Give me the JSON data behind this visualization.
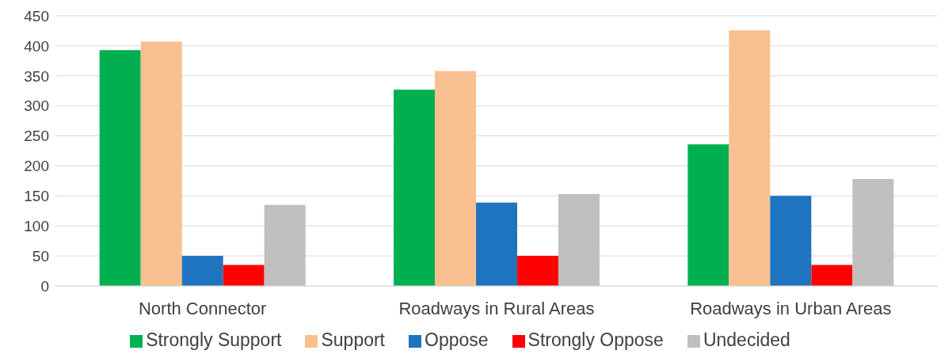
{
  "chart_data": {
    "type": "bar",
    "categories": [
      "North Connector",
      "Roadways in Rural Areas",
      "Roadways in Urban Areas"
    ],
    "series": [
      {
        "name": "Strongly Support",
        "color": "#00b050",
        "values": [
          393,
          327,
          236
        ]
      },
      {
        "name": "Support",
        "color": "#f8c090",
        "values": [
          407,
          358,
          426
        ]
      },
      {
        "name": "Oppose",
        "color": "#1f74c0",
        "values": [
          50,
          139,
          150
        ]
      },
      {
        "name": "Strongly Oppose",
        "color": "#ff0000",
        "values": [
          35,
          50,
          35
        ]
      },
      {
        "name": "Undecided",
        "color": "#bfbfbf",
        "values": [
          135,
          153,
          178
        ]
      }
    ],
    "ylim": [
      0,
      450
    ],
    "yticks": [
      0,
      50,
      100,
      150,
      200,
      250,
      300,
      350,
      400,
      450
    ],
    "grid": "y",
    "legend": "bottom"
  }
}
